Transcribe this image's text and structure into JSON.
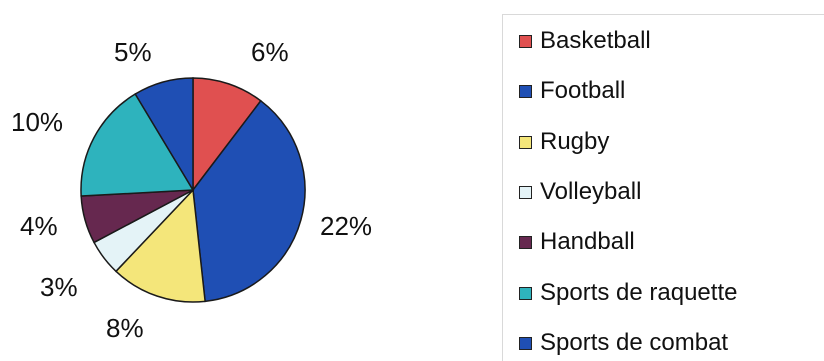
{
  "chart_data": {
    "type": "pie",
    "slices": [
      {
        "name": "Basketball",
        "value": 6,
        "label": "6%",
        "color": "#e05050"
      },
      {
        "name": "Football",
        "value": 22,
        "label": "22%",
        "color": "#1f4fb4"
      },
      {
        "name": "Rugby",
        "value": 8,
        "label": "8%",
        "color": "#f4e67a"
      },
      {
        "name": "Volleyball",
        "value": 3,
        "label": "3%",
        "color": "#e4f3f7"
      },
      {
        "name": "Handball",
        "value": 4,
        "label": "4%",
        "color": "#66284f"
      },
      {
        "name": "Sports de raquette",
        "value": 10,
        "label": "10%",
        "color": "#2eb3bd"
      },
      {
        "name": "Sports de combat",
        "value": 5,
        "label": "5%",
        "color": "#1f4fb4"
      }
    ],
    "legend_position": "right"
  }
}
